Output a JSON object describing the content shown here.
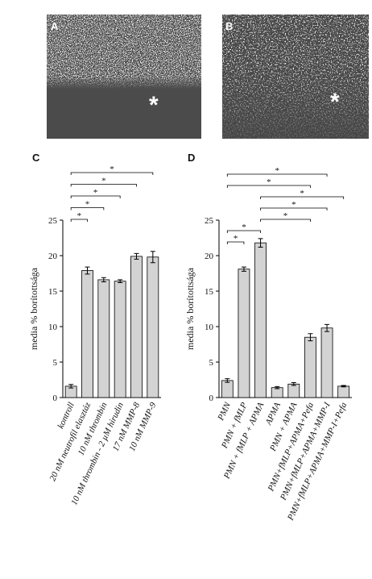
{
  "panels": [
    {
      "label": "A",
      "marker": "*"
    },
    {
      "label": "B",
      "marker": "*"
    }
  ],
  "chart_data": [
    {
      "type": "bar",
      "panel_label": "C",
      "y_label": "media % borítottsága",
      "categories": [
        "kontroll",
        "20 nM neutrofil elasztáz",
        "10 nM thrombin",
        "10 nM thrombin - 2 µM hirudin",
        "17 nM MMP-8",
        "10 nM MMP-9"
      ],
      "values": [
        1.6,
        17.9,
        16.6,
        16.4,
        19.9,
        19.8
      ],
      "errors": [
        0.25,
        0.5,
        0.3,
        0.2,
        0.4,
        0.8
      ],
      "color": "#d3d3d3",
      "ylim": [
        0,
        25
      ],
      "yticks": [
        0,
        5,
        10,
        15,
        20,
        25
      ],
      "comparisons": [
        {
          "between": [
            0,
            1
          ],
          "label": "*"
        },
        {
          "between": [
            0,
            2
          ],
          "label": "*"
        },
        {
          "between": [
            0,
            3
          ],
          "label": "*"
        },
        {
          "between": [
            0,
            4
          ],
          "label": "*"
        },
        {
          "between": [
            0,
            5
          ],
          "label": "*"
        }
      ]
    },
    {
      "type": "bar",
      "panel_label": "D",
      "y_label": "media % borítottsága",
      "categories": [
        "PMN",
        "PMN + fMLP",
        "PMN + fMLP + APMA",
        "APMA",
        "PMN + APMA",
        "PMN+fMLP+APMA+Pefa",
        "PMN+fMLP+APMA+MMP-I",
        "PMN+fMLP+APMA+MMP-I+Pefa"
      ],
      "values": [
        2.4,
        18.1,
        21.8,
        1.4,
        1.9,
        8.5,
        9.8,
        1.6
      ],
      "errors": [
        0.25,
        0.3,
        0.6,
        0.15,
        0.2,
        0.5,
        0.5,
        0.1
      ],
      "color": "#d3d3d3",
      "ylim": [
        0,
        25
      ],
      "yticks": [
        0,
        5,
        10,
        15,
        20,
        25
      ],
      "comparisons": [
        {
          "between": [
            0,
            1
          ],
          "label": "*"
        },
        {
          "between": [
            0,
            2
          ],
          "label": "*"
        },
        {
          "between": [
            2,
            5
          ],
          "label": "*"
        },
        {
          "between": [
            2,
            6
          ],
          "label": "*"
        },
        {
          "between": [
            2,
            7
          ],
          "label": "*"
        },
        {
          "between": [
            0,
            5
          ],
          "label": "*"
        },
        {
          "between": [
            0,
            6
          ],
          "label": "*"
        }
      ]
    }
  ]
}
